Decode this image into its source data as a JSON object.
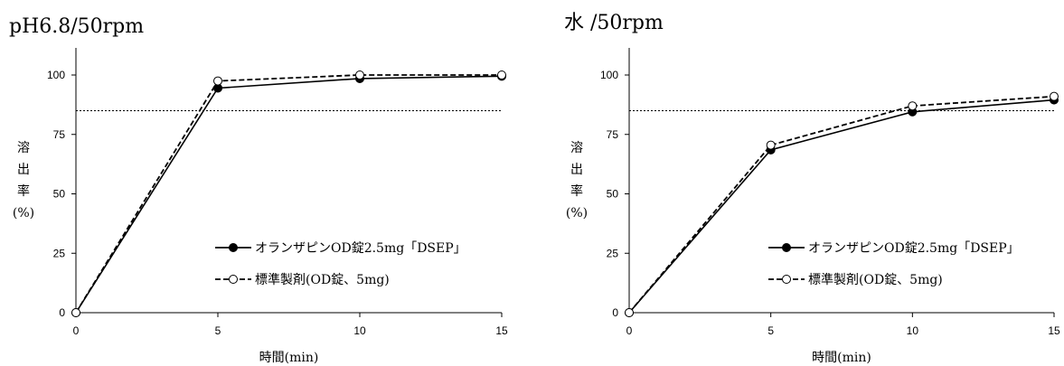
{
  "chart_data": [
    {
      "type": "line",
      "title": "pH6.8/50rpm",
      "xlabel": "時間(min)",
      "ylabel": "溶出率(%)",
      "x": [
        0,
        5,
        10,
        15
      ],
      "xlim": [
        0,
        15
      ],
      "ylim": [
        0,
        100
      ],
      "xticks": [
        "0",
        "5",
        "10",
        "15"
      ],
      "yticks": [
        "0",
        "25",
        "50",
        "75",
        "100"
      ],
      "reference_line": 85,
      "legend_position": "lower-right",
      "series": [
        {
          "name": "オランザピンOD錠2.5mg「DSEP」",
          "values": [
            0,
            94.5,
            98.5,
            99.5
          ],
          "line": "solid",
          "marker": "filled-circle"
        },
        {
          "name": "標準製剤(OD錠、5mg)",
          "values": [
            0,
            97.5,
            100,
            100
          ],
          "line": "dashed",
          "marker": "open-circle"
        }
      ]
    },
    {
      "type": "line",
      "title": "水 /50rpm",
      "xlabel": "時間(min)",
      "ylabel": "溶出率(%)",
      "x": [
        0,
        5,
        10,
        15
      ],
      "xlim": [
        0,
        15
      ],
      "ylim": [
        0,
        100
      ],
      "xticks": [
        "0",
        "5",
        "10",
        "15"
      ],
      "yticks": [
        "0",
        "25",
        "50",
        "75",
        "100"
      ],
      "reference_line": 85,
      "legend_position": "lower-right",
      "series": [
        {
          "name": "オランザピンOD錠2.5mg「DSEP」",
          "values": [
            0,
            68.5,
            84.5,
            89.5
          ],
          "line": "solid",
          "marker": "filled-circle"
        },
        {
          "name": "標準製剤(OD錠、5mg)",
          "values": [
            0,
            70.5,
            87,
            91
          ],
          "line": "dashed",
          "marker": "open-circle"
        }
      ]
    }
  ]
}
